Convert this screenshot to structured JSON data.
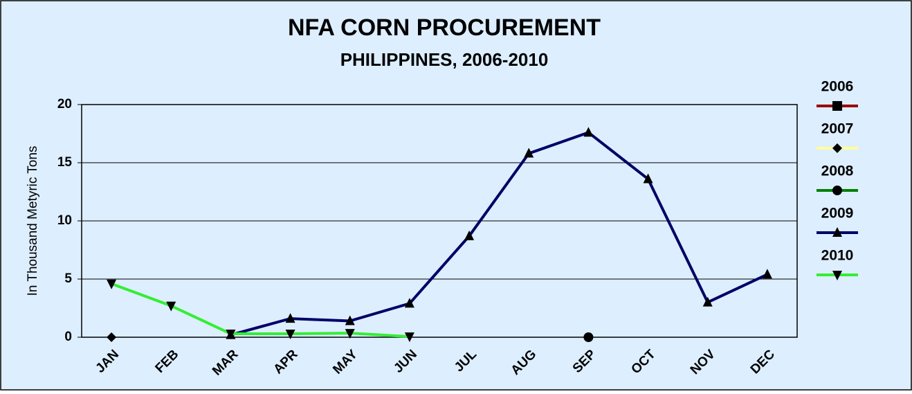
{
  "chart_data": {
    "type": "line",
    "title": "NFA CORN PROCUREMENT",
    "subtitle": "PHILIPPINES, 2006-2010",
    "y_label": "In Thousand Metyric Tons",
    "categories": [
      "JAN",
      "FEB",
      "MAR",
      "APR",
      "MAY",
      "JUN",
      "JUL",
      "AUG",
      "SEP",
      "OCT",
      "NOV",
      "DEC"
    ],
    "series": [
      {
        "name": "2006",
        "color": "#990000",
        "marker": "square",
        "values": [
          null,
          null,
          null,
          null,
          null,
          null,
          null,
          null,
          null,
          null,
          null,
          null
        ]
      },
      {
        "name": "2007",
        "color": "#ffff99",
        "marker": "diamond",
        "values": [
          0,
          null,
          null,
          null,
          null,
          null,
          null,
          null,
          null,
          null,
          null,
          null
        ]
      },
      {
        "name": "2008",
        "color": "#008000",
        "marker": "circle",
        "values": [
          null,
          null,
          null,
          null,
          null,
          null,
          null,
          null,
          0,
          null,
          null,
          null
        ]
      },
      {
        "name": "2009",
        "color": "#000066",
        "marker": "triangle-up",
        "values": [
          null,
          null,
          0.2,
          1.6,
          1.4,
          2.9,
          8.7,
          15.8,
          17.6,
          13.6,
          3.0,
          5.4
        ]
      },
      {
        "name": "2010",
        "color": "#33ee33",
        "marker": "triangle-down",
        "values": [
          4.6,
          2.7,
          0.3,
          0.3,
          0.35,
          0.05,
          null,
          null,
          null,
          null,
          null,
          null
        ]
      }
    ],
    "ylim": [
      0,
      20
    ],
    "yticks": [
      0,
      5,
      10,
      15,
      20
    ],
    "grid": true,
    "legend": "right"
  }
}
